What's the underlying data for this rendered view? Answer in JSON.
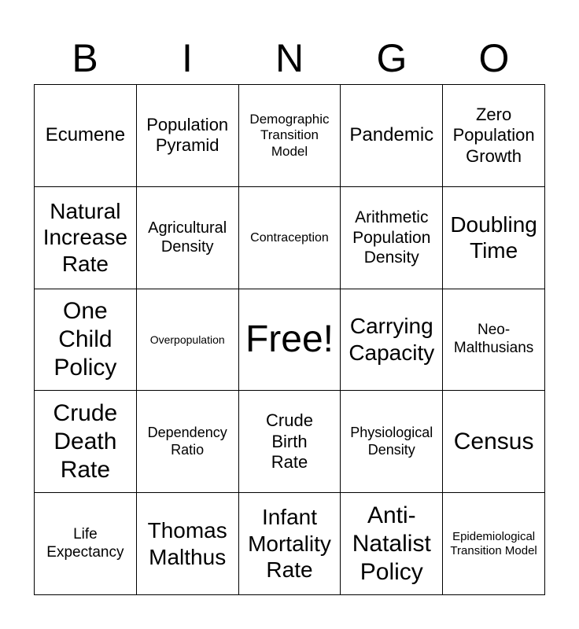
{
  "header": {
    "letters": [
      "B",
      "I",
      "N",
      "G",
      "O"
    ]
  },
  "grid": {
    "rows": [
      [
        "Ecumene",
        "Population Pyramid",
        "Demographic Transition Model",
        "Pandemic",
        "Zero Population Growth"
      ],
      [
        "Natural Increase Rate",
        "Agricultural Density",
        "Contraception",
        "Arithmetic Population Density",
        "Doubling Time"
      ],
      [
        "One Child Policy",
        "Overpopulation",
        "Free!",
        "Carrying Capacity",
        "Neo-Malthusians"
      ],
      [
        "Crude Death Rate",
        "Dependency Ratio",
        "Crude Birth Rate",
        "Physiological Density",
        "Census"
      ],
      [
        "Life Expectancy",
        "Thomas Malthus",
        "Infant Mortality Rate",
        "Anti-Natalist Policy",
        "Epidemiological Transition Model"
      ]
    ]
  }
}
